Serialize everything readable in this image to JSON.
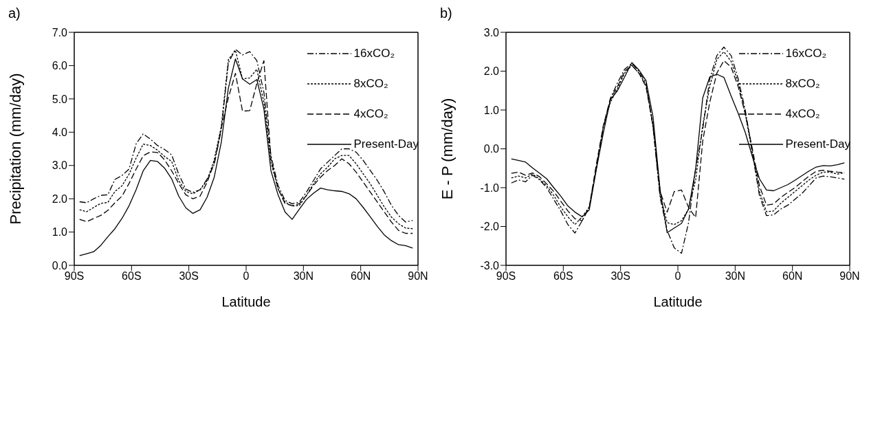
{
  "chart_data": [
    {
      "type": "line",
      "title": "a)",
      "xlabel": "Latitude",
      "ylabel": "Precipitation (mm/day)",
      "legend": "top right",
      "marker": "none",
      "x": [
        -87.2,
        -83.5,
        -79.8,
        -76.1,
        -72.4,
        -68.7,
        -65.0,
        -61.3,
        -57.6,
        -53.9,
        -50.1,
        -46.4,
        -42.7,
        -39.0,
        -35.3,
        -31.6,
        -27.9,
        -24.1,
        -20.4,
        -16.7,
        -13.0,
        -9.3,
        -5.6,
        -1.9,
        1.9,
        5.6,
        9.3,
        13.0,
        16.7,
        20.4,
        24.1,
        27.9,
        31.6,
        35.3,
        39.0,
        42.7,
        46.4,
        50.1,
        53.9,
        57.6,
        61.3,
        65.0,
        68.7,
        72.4,
        76.1,
        79.8,
        83.5,
        87.2
      ],
      "xlim": [
        -90,
        90
      ],
      "xticks": [
        {
          "value": -90,
          "label": "90S"
        },
        {
          "value": -60,
          "label": "60S"
        },
        {
          "value": -30,
          "label": "30S"
        },
        {
          "value": 0,
          "label": "0"
        },
        {
          "value": 30,
          "label": "30N"
        },
        {
          "value": 60,
          "label": "60N"
        },
        {
          "value": 90,
          "label": "90N"
        }
      ],
      "ylim": [
        0,
        7
      ],
      "yticks": [
        {
          "value": 0,
          "label": "0.0"
        },
        {
          "value": 1,
          "label": "1.0"
        },
        {
          "value": 2,
          "label": "2.0"
        },
        {
          "value": 3,
          "label": "3.0"
        },
        {
          "value": 4,
          "label": "4.0"
        },
        {
          "value": 5,
          "label": "5.0"
        },
        {
          "value": 6,
          "label": "6.0"
        },
        {
          "value": 7,
          "label": "7.0"
        }
      ],
      "series": [
        {
          "name": "16xCO₂",
          "color": "#000000",
          "line_style": "dashdot",
          "values": [
            1.91,
            1.88,
            2.0,
            2.1,
            2.12,
            2.58,
            2.7,
            2.89,
            3.65,
            3.95,
            3.79,
            3.6,
            3.48,
            3.32,
            2.74,
            2.29,
            2.19,
            2.27,
            2.6,
            3.03,
            4.08,
            6.08,
            6.49,
            6.32,
            6.42,
            6.15,
            5.2,
            3.3,
            2.4,
            1.95,
            1.85,
            1.9,
            2.2,
            2.55,
            2.9,
            3.1,
            3.3,
            3.5,
            3.5,
            3.4,
            3.15,
            2.85,
            2.55,
            2.2,
            1.8,
            1.5,
            1.3,
            1.35
          ]
        },
        {
          "name": "8xCO₂",
          "color": "#000000",
          "line_style": "dotted",
          "values": [
            1.67,
            1.61,
            1.74,
            1.86,
            1.89,
            2.22,
            2.39,
            2.74,
            3.22,
            3.64,
            3.6,
            3.46,
            3.27,
            3.12,
            2.55,
            2.22,
            2.15,
            2.27,
            2.55,
            3.17,
            4.17,
            6.18,
            6.46,
            5.6,
            5.63,
            5.89,
            4.9,
            3.1,
            2.3,
            1.9,
            1.78,
            1.8,
            2.1,
            2.45,
            2.75,
            2.95,
            3.2,
            3.3,
            3.3,
            3.05,
            2.75,
            2.45,
            2.1,
            1.75,
            1.45,
            1.25,
            1.12,
            1.1
          ]
        },
        {
          "name": "4xCO₂",
          "color": "#000000",
          "line_style": "dashed",
          "values": [
            1.38,
            1.31,
            1.41,
            1.5,
            1.65,
            1.88,
            2.08,
            2.46,
            2.89,
            3.29,
            3.41,
            3.39,
            3.17,
            2.84,
            2.46,
            2.12,
            2.0,
            2.08,
            2.5,
            3.08,
            4.13,
            5.03,
            5.77,
            4.63,
            4.65,
            5.46,
            6.15,
            3.2,
            2.3,
            1.85,
            1.8,
            1.85,
            2.1,
            2.4,
            2.65,
            2.85,
            3.0,
            3.2,
            3.05,
            2.8,
            2.5,
            2.2,
            1.9,
            1.6,
            1.3,
            1.05,
            0.96,
            0.96
          ]
        },
        {
          "name": "Present-Day",
          "color": "#000000",
          "line_style": "solid",
          "values": [
            0.29,
            0.35,
            0.41,
            0.6,
            0.86,
            1.1,
            1.41,
            1.79,
            2.27,
            2.84,
            3.15,
            3.12,
            2.92,
            2.6,
            2.08,
            1.73,
            1.56,
            1.67,
            2.05,
            2.65,
            3.7,
            5.32,
            6.2,
            5.6,
            5.44,
            5.58,
            4.7,
            2.84,
            2.12,
            1.6,
            1.38,
            1.69,
            1.98,
            2.17,
            2.32,
            2.27,
            2.24,
            2.22,
            2.15,
            2.0,
            1.74,
            1.46,
            1.17,
            0.91,
            0.74,
            0.62,
            0.59,
            0.52
          ]
        }
      ]
    },
    {
      "type": "line",
      "title": "b)",
      "xlabel": "Latitude",
      "ylabel": "E - P (mm/day)",
      "legend": "top right",
      "marker": "none",
      "x": [
        -87.2,
        -83.5,
        -79.8,
        -76.1,
        -72.4,
        -68.7,
        -65.0,
        -61.3,
        -57.6,
        -53.9,
        -50.1,
        -46.4,
        -42.7,
        -39.0,
        -35.3,
        -31.6,
        -27.9,
        -24.1,
        -20.4,
        -16.7,
        -13.0,
        -9.3,
        -5.6,
        -1.9,
        1.9,
        5.6,
        9.3,
        13.0,
        16.7,
        20.4,
        24.1,
        27.9,
        31.6,
        35.3,
        39.0,
        42.7,
        46.4,
        50.1,
        53.9,
        57.6,
        61.3,
        65.0,
        68.7,
        72.4,
        76.1,
        79.8,
        83.5,
        87.2
      ],
      "xlim": [
        -90,
        90
      ],
      "xticks": [
        {
          "value": -90,
          "label": "90S"
        },
        {
          "value": -60,
          "label": "60S"
        },
        {
          "value": -30,
          "label": "30S"
        },
        {
          "value": 0,
          "label": "0"
        },
        {
          "value": 30,
          "label": "30N"
        },
        {
          "value": 60,
          "label": "60N"
        },
        {
          "value": 90,
          "label": "90N"
        }
      ],
      "ylim": [
        -3,
        3
      ],
      "yticks": [
        {
          "value": -3,
          "label": "-3.0"
        },
        {
          "value": -2,
          "label": "-2.0"
        },
        {
          "value": -1,
          "label": "-1.0"
        },
        {
          "value": 0,
          "label": "0.0"
        },
        {
          "value": 1,
          "label": "1.0"
        },
        {
          "value": 2,
          "label": "2.0"
        },
        {
          "value": 3,
          "label": "3.0"
        }
      ],
      "series": [
        {
          "name": "16xCO₂",
          "color": "#000000",
          "line_style": "dashdot",
          "values": [
            -0.88,
            -0.8,
            -0.85,
            -0.68,
            -0.8,
            -1.0,
            -1.3,
            -1.6,
            -1.95,
            -2.17,
            -1.85,
            -1.5,
            -0.5,
            0.55,
            1.3,
            1.7,
            2.05,
            2.2,
            2.0,
            1.7,
            0.55,
            -1.25,
            -2.1,
            -2.55,
            -2.69,
            -1.9,
            -0.5,
            0.5,
            1.8,
            2.4,
            2.62,
            2.4,
            1.8,
            1.0,
            -0.1,
            -1.2,
            -1.72,
            -1.7,
            -1.55,
            -1.45,
            -1.3,
            -1.15,
            -0.95,
            -0.75,
            -0.7,
            -0.72,
            -0.75,
            -0.78
          ]
        },
        {
          "name": "8xCO₂",
          "color": "#000000",
          "line_style": "dotted",
          "values": [
            -0.75,
            -0.7,
            -0.75,
            -0.65,
            -0.78,
            -0.95,
            -1.2,
            -1.5,
            -1.75,
            -1.95,
            -1.75,
            -1.5,
            -0.5,
            0.6,
            1.2,
            1.55,
            1.95,
            2.15,
            1.95,
            1.65,
            0.6,
            -1.2,
            -1.9,
            -1.95,
            -1.85,
            -1.55,
            -0.8,
            0.6,
            1.6,
            2.3,
            2.5,
            2.25,
            1.7,
            0.9,
            -0.1,
            -1.1,
            -1.62,
            -1.6,
            -1.4,
            -1.25,
            -1.1,
            -0.95,
            -0.8,
            -0.68,
            -0.6,
            -0.6,
            -0.65,
            -0.62
          ]
        },
        {
          "name": "4xCO₂",
          "color": "#000000",
          "line_style": "dashed",
          "values": [
            -0.63,
            -0.6,
            -0.68,
            -0.62,
            -0.72,
            -0.9,
            -1.1,
            -1.35,
            -1.6,
            -1.8,
            -1.85,
            -1.5,
            -0.4,
            0.6,
            1.3,
            1.6,
            2.0,
            2.15,
            1.95,
            1.6,
            0.6,
            -1.1,
            -1.63,
            -1.1,
            -1.06,
            -1.51,
            -1.77,
            0.2,
            1.2,
            1.95,
            2.27,
            2.1,
            1.6,
            0.9,
            0.0,
            -0.95,
            -1.45,
            -1.42,
            -1.25,
            -1.12,
            -1.0,
            -0.85,
            -0.7,
            -0.58,
            -0.55,
            -0.58,
            -0.6,
            -0.61
          ]
        },
        {
          "name": "Present-Day",
          "color": "#000000",
          "line_style": "solid",
          "values": [
            -0.26,
            -0.3,
            -0.34,
            -0.49,
            -0.63,
            -0.77,
            -1.0,
            -1.22,
            -1.47,
            -1.63,
            -1.75,
            -1.57,
            -0.53,
            0.42,
            1.27,
            1.5,
            1.85,
            2.22,
            2.03,
            1.76,
            0.82,
            -1.06,
            -2.16,
            -2.04,
            -1.92,
            -1.55,
            -0.53,
            1.31,
            1.85,
            1.92,
            1.84,
            1.36,
            0.91,
            0.42,
            -0.2,
            -0.77,
            -1.06,
            -1.08,
            -1.0,
            -0.92,
            -0.81,
            -0.69,
            -0.57,
            -0.47,
            -0.43,
            -0.44,
            -0.41,
            -0.36
          ]
        }
      ]
    }
  ]
}
